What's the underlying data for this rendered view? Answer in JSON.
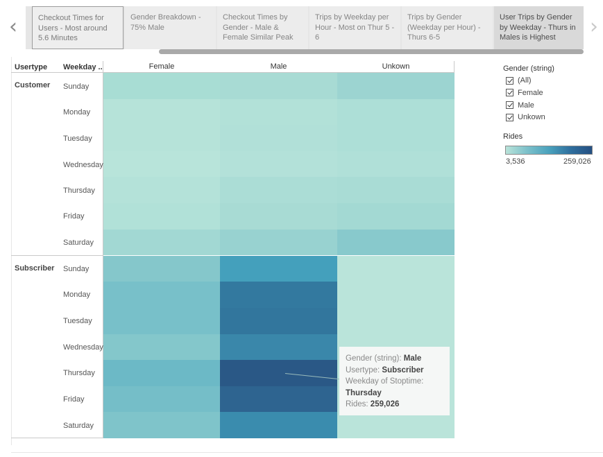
{
  "story": {
    "prev_icon": "chevron-left-icon",
    "next_icon": "chevron-right-icon",
    "tabs": [
      {
        "label": "Checkout Times for Users - Most around 5.6 Minutes"
      },
      {
        "label": "Gender Breakdown - 75% Male"
      },
      {
        "label": "Checkout Times by Gender - Male & Female Similar Peak"
      },
      {
        "label": "Trips by Weekday per Hour - Most on Thur 5 - 6"
      },
      {
        "label": "Trips by Gender (Weekday per Hour) - Thurs 6-5"
      },
      {
        "label": "User Trips by Gender by Weekday - Thurs in Males is Highest"
      }
    ]
  },
  "table": {
    "col_headers": {
      "usertype": "Usertype",
      "weekday": "Weekday ..",
      "female": "Female",
      "male": "Male",
      "unknown": "Unkown"
    },
    "groups": [
      {
        "label": "Customer",
        "days": [
          "Sunday",
          "Monday",
          "Tuesday",
          "Wednesday",
          "Thursday",
          "Friday",
          "Saturday"
        ]
      },
      {
        "label": "Subscriber",
        "days": [
          "Sunday",
          "Monday",
          "Tuesday",
          "Wednesday",
          "Thursday",
          "Friday",
          "Saturday"
        ]
      }
    ]
  },
  "chart_data": {
    "type": "heatmap",
    "columns": [
      "Female",
      "Male",
      "Unkown"
    ],
    "rows": [
      {
        "usertype": "Customer",
        "weekday": "Sunday",
        "colors": [
          "#a8ddd4",
          "#a8dbd4",
          "#9cd4d1"
        ]
      },
      {
        "usertype": "Customer",
        "weekday": "Monday",
        "colors": [
          "#b6e3d9",
          "#b2e1d8",
          "#addfd7"
        ]
      },
      {
        "usertype": "Customer",
        "weekday": "Tuesday",
        "colors": [
          "#b6e3d9",
          "#b1e0d8",
          "#addfd7"
        ]
      },
      {
        "usertype": "Customer",
        "weekday": "Wednesday",
        "colors": [
          "#b8e4da",
          "#b3e1d9",
          "#b0e0d8"
        ]
      },
      {
        "usertype": "Customer",
        "weekday": "Thursday",
        "colors": [
          "#b4e2d9",
          "#abddd6",
          "#a9dcd5"
        ]
      },
      {
        "usertype": "Customer",
        "weekday": "Friday",
        "colors": [
          "#b1e1d8",
          "#a8dbd4",
          "#a3d9d3"
        ]
      },
      {
        "usertype": "Customer",
        "weekday": "Saturday",
        "colors": [
          "#a2d8d3",
          "#98d2d0",
          "#88c9cc"
        ]
      },
      {
        "usertype": "Subscriber",
        "weekday": "Sunday",
        "colors": [
          "#85c7cb",
          "#44a0bc",
          "#bae4da"
        ]
      },
      {
        "usertype": "Subscriber",
        "weekday": "Monday",
        "colors": [
          "#78c0c9",
          "#33799f",
          "#bae4da"
        ]
      },
      {
        "usertype": "Subscriber",
        "weekday": "Tuesday",
        "colors": [
          "#78c0c9",
          "#32769d",
          "#bae4da"
        ]
      },
      {
        "usertype": "Subscriber",
        "weekday": "Wednesday",
        "colors": [
          "#84c7cb",
          "#3a87aa",
          "#bae4da"
        ]
      },
      {
        "usertype": "Subscriber",
        "weekday": "Thursday",
        "colors": [
          "#6cb9c6",
          "#2a5886",
          "#bae4da"
        ]
      },
      {
        "usertype": "Subscriber",
        "weekday": "Friday",
        "colors": [
          "#75bec8",
          "#2e6490",
          "#bae4da"
        ]
      },
      {
        "usertype": "Subscriber",
        "weekday": "Saturday",
        "colors": [
          "#7fc4ca",
          "#3a8cae",
          "#bae4da"
        ]
      }
    ],
    "color_legend": {
      "title": "Rides",
      "min": 3536,
      "max": 259026,
      "min_label": "3,536",
      "max_label": "259,026"
    }
  },
  "filter": {
    "title": "Gender (string)",
    "options": [
      "(All)",
      "Female",
      "Male",
      "Unkown"
    ]
  },
  "tooltip": {
    "gender_label": "Gender (string): ",
    "gender_value": "Male",
    "usertype_label": "Usertype: ",
    "usertype_value": "Subscriber",
    "weekday_label": "Weekday of Stoptime:",
    "weekday_value": "Thursday",
    "rides_label": "Rides: ",
    "rides_value": "259,026"
  }
}
